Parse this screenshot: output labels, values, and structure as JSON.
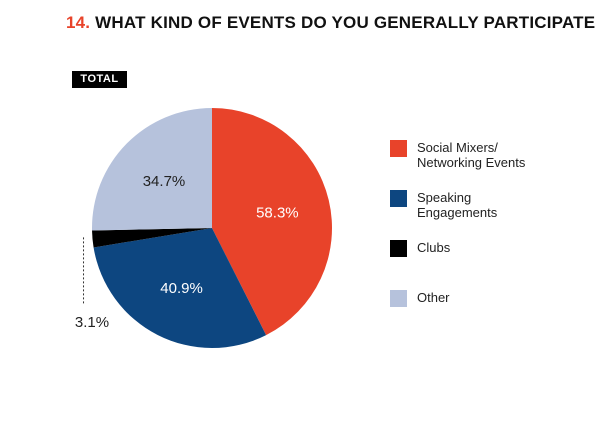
{
  "title": {
    "number": "14.",
    "text": "WHAT KIND OF EVENTS DO YOU GENERALLY PARTICIPATE IN?"
  },
  "badge": "TOTAL",
  "chart_data": {
    "type": "pie",
    "title": "WHAT KIND OF EVENTS DO YOU GENERALLY PARTICIPATE IN?",
    "slices": [
      {
        "label": "Social Mixers/ Networking Events",
        "legend_lines": [
          "Social Mixers/",
          "Networking Events"
        ],
        "value": 58.3,
        "display": "58.3%",
        "color": "#e8432a"
      },
      {
        "label": "Speaking Engagements",
        "legend_lines": [
          "Speaking",
          "Engagements"
        ],
        "value": 40.9,
        "display": "40.9%",
        "color": "#0d4680"
      },
      {
        "label": "Clubs",
        "legend_lines": [
          "Clubs"
        ],
        "value": 3.1,
        "display": "3.1%",
        "color": "#000000"
      },
      {
        "label": "Other",
        "legend_lines": [
          "Other"
        ],
        "value": 34.7,
        "display": "34.7%",
        "color": "#b6c2dc"
      }
    ],
    "legend_position": "right"
  }
}
